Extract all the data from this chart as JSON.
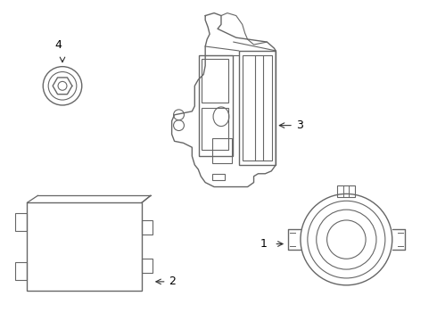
{
  "background_color": "#ffffff",
  "line_color": "#666666",
  "line_width": 1.0,
  "arrow_color": "#333333",
  "font_size": 9,
  "fig_w": 4.9,
  "fig_h": 3.6,
  "dpi": 100
}
